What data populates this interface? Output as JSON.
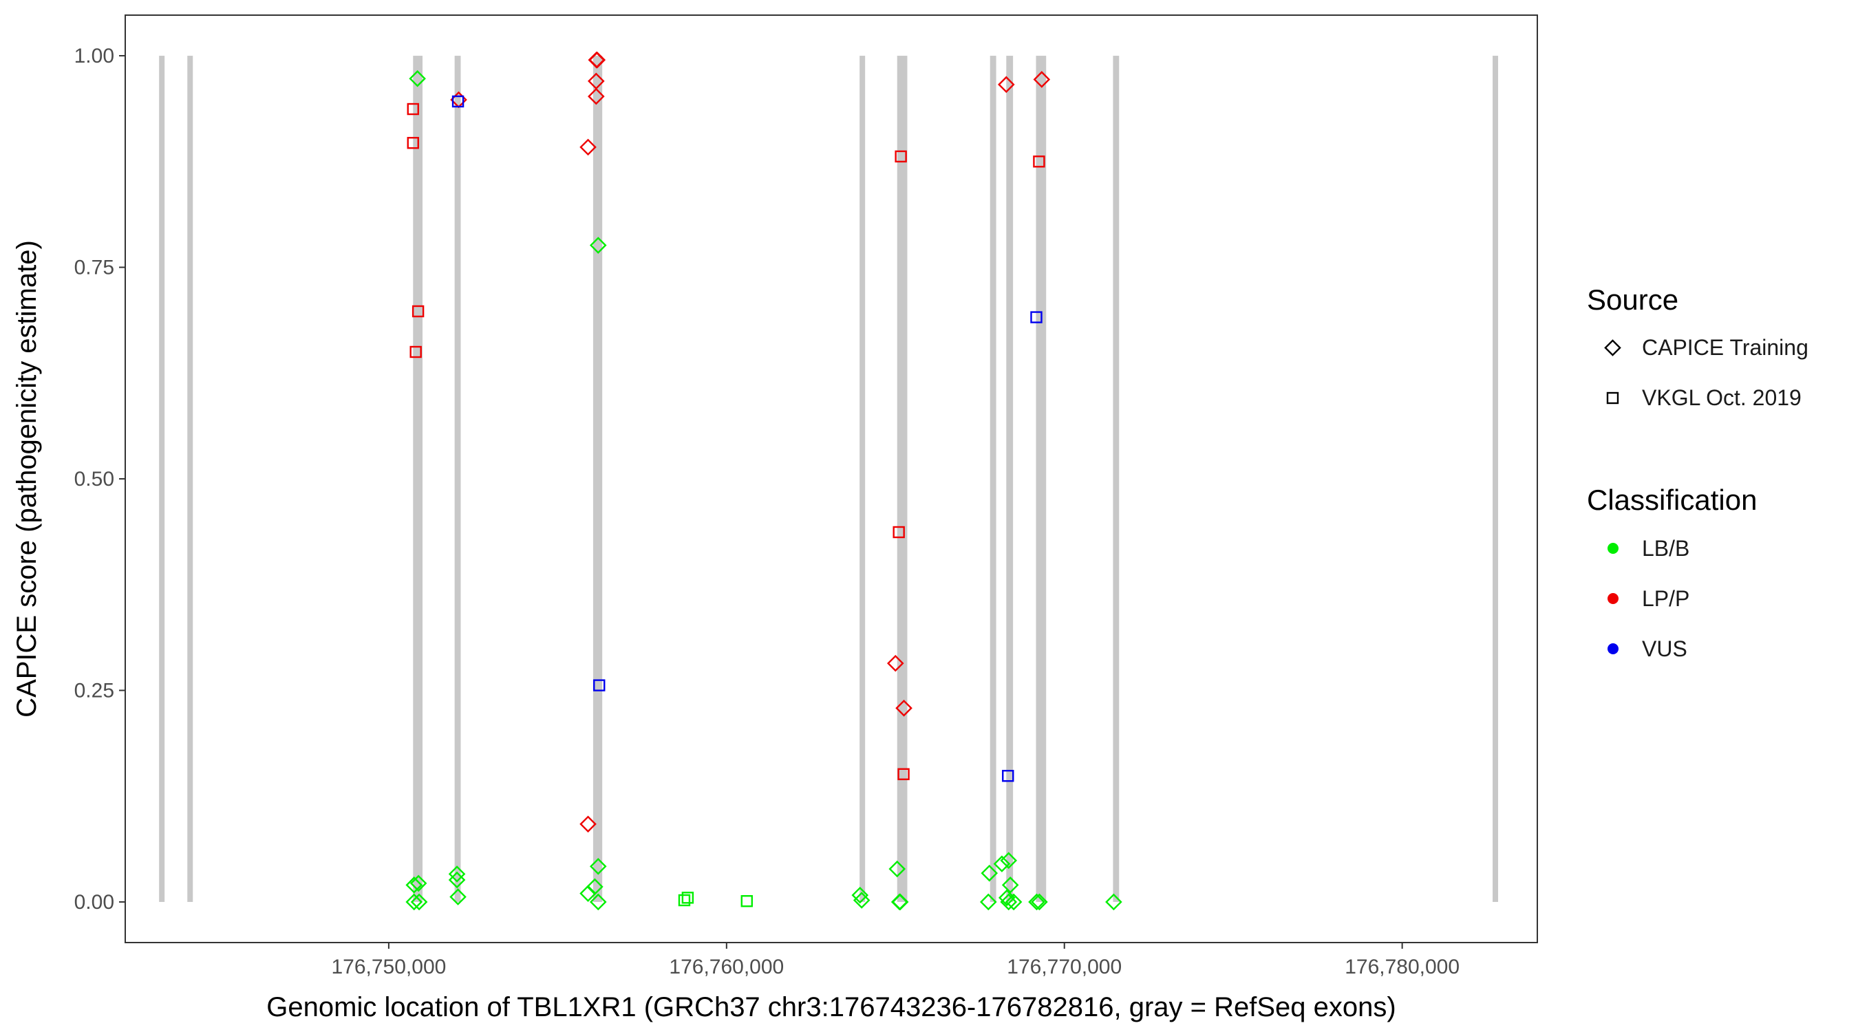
{
  "chart_data": {
    "type": "scatter",
    "xlabel": "Genomic location of TBL1XR1 (GRCh37 chr3:176743236-176782816, gray = RefSeq exons)",
    "ylabel": "CAPICE score (pathogenicity estimate)",
    "xlim": [
      176742200,
      176784000
    ],
    "ylim": [
      -0.048,
      1.048
    ],
    "x_ticks": [
      176750000,
      176760000,
      176770000,
      176780000
    ],
    "x_tick_labels": [
      "176,750,000",
      "176,760,000",
      "176,770,000",
      "176,780,000"
    ],
    "y_ticks": [
      0,
      0.25,
      0.5,
      0.75,
      1.0
    ],
    "y_tick_labels": [
      "0.00",
      "0.25",
      "0.50",
      "0.75",
      "1.00"
    ],
    "grid": false,
    "exons": [
      {
        "start": 176743236,
        "end": 176743330
      },
      {
        "start": 176744040,
        "end": 176744200
      },
      {
        "start": 176750720,
        "end": 176751000
      },
      {
        "start": 176751950,
        "end": 176752130
      },
      {
        "start": 176756050,
        "end": 176756320
      },
      {
        "start": 176763950,
        "end": 176764090
      },
      {
        "start": 176765050,
        "end": 176765350
      },
      {
        "start": 176767800,
        "end": 176767980
      },
      {
        "start": 176768280,
        "end": 176768480
      },
      {
        "start": 176769160,
        "end": 176769460
      },
      {
        "start": 176771440,
        "end": 176771620
      },
      {
        "start": 176782700,
        "end": 176782816
      }
    ],
    "legend": {
      "placement": "right",
      "source": {
        "title": "Source",
        "entries": [
          {
            "label": "CAPICE Training",
            "shape": "diamond"
          },
          {
            "label": "VKGL Oct. 2019",
            "shape": "square"
          }
        ]
      },
      "classification": {
        "title": "Classification",
        "entries": [
          {
            "label": "LB/B",
            "color": "#00ee00"
          },
          {
            "label": "LP/P",
            "color": "#ee0000"
          },
          {
            "label": "VUS",
            "color": "#0000ee"
          }
        ]
      }
    },
    "series": [
      {
        "source": "CAPICE Training",
        "classification": "LP/P",
        "points": [
          [
            176752070,
            0.948
          ],
          [
            176755900,
            0.892
          ],
          [
            176756150,
            0.995
          ],
          [
            176756170,
            0.995
          ],
          [
            176756140,
            0.97
          ],
          [
            176756140,
            0.952
          ],
          [
            176755900,
            0.092
          ],
          [
            176765000,
            0.282
          ],
          [
            176765250,
            0.229
          ],
          [
            176768280,
            0.966
          ],
          [
            176769330,
            0.972
          ]
        ]
      },
      {
        "source": "CAPICE Training",
        "classification": "LB/B",
        "points": [
          [
            176750850,
            0.973
          ],
          [
            176756200,
            0.776
          ],
          [
            176756200,
            0.042
          ],
          [
            176755900,
            0.01
          ],
          [
            176756100,
            0.018
          ],
          [
            176756200,
            0.0
          ],
          [
            176750750,
            0.02
          ],
          [
            176750880,
            0.022
          ],
          [
            176750750,
            0.0
          ],
          [
            176750900,
            0.0
          ],
          [
            176752020,
            0.033
          ],
          [
            176752020,
            0.026
          ],
          [
            176752050,
            0.006
          ],
          [
            176763950,
            0.008
          ],
          [
            176764000,
            0.002
          ],
          [
            176765050,
            0.039
          ],
          [
            176765120,
            0.0
          ],
          [
            176765140,
            0.0
          ],
          [
            176767780,
            0.034
          ],
          [
            176768150,
            0.045
          ],
          [
            176768350,
            0.049
          ],
          [
            176768400,
            0.02
          ],
          [
            176767750,
            0.0
          ],
          [
            176768300,
            0.005
          ],
          [
            176768350,
            0.0
          ],
          [
            176768500,
            0.0
          ],
          [
            176769180,
            0.0
          ],
          [
            176769260,
            0.0
          ],
          [
            176771460,
            0.0
          ]
        ]
      },
      {
        "source": "VKGL Oct. 2019",
        "classification": "LP/P",
        "points": [
          [
            176750720,
            0.937
          ],
          [
            176750720,
            0.897
          ],
          [
            176750870,
            0.698
          ],
          [
            176750800,
            0.65
          ],
          [
            176765160,
            0.881
          ],
          [
            176765100,
            0.437
          ],
          [
            176765240,
            0.151
          ],
          [
            176769250,
            0.875
          ]
        ]
      },
      {
        "source": "VKGL Oct. 2019",
        "classification": "VUS",
        "points": [
          [
            176752050,
            0.946
          ],
          [
            176756230,
            0.256
          ],
          [
            176769170,
            0.691
          ],
          [
            176768330,
            0.149
          ]
        ]
      },
      {
        "source": "VKGL Oct. 2019",
        "classification": "LB/B",
        "points": [
          [
            176758750,
            0.002
          ],
          [
            176758850,
            0.005
          ],
          [
            176760600,
            0.001
          ]
        ]
      }
    ]
  }
}
